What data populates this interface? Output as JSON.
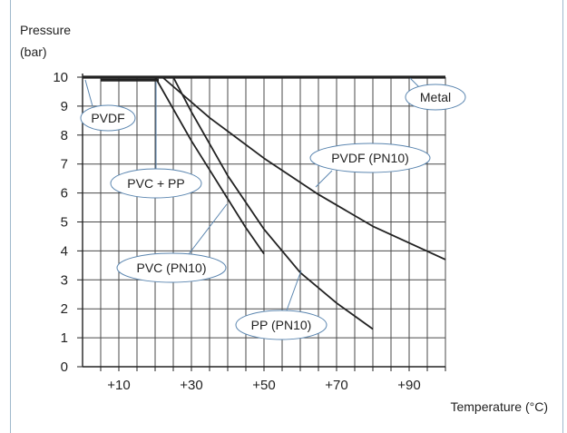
{
  "chart_data": {
    "type": "line",
    "ylabel_line1": "Pressure",
    "ylabel_line2": "(bar)",
    "xlabel": "Temperature (°C)",
    "xlim": [
      0,
      100
    ],
    "ylim": [
      0,
      10
    ],
    "x_ticks": [
      {
        "value": 10,
        "label": "+10"
      },
      {
        "value": 30,
        "label": "+30"
      },
      {
        "value": 50,
        "label": "+50"
      },
      {
        "value": 70,
        "label": "+70"
      },
      {
        "value": 90,
        "label": "+90"
      }
    ],
    "y_ticks": [
      {
        "value": 0,
        "label": "0"
      },
      {
        "value": 1,
        "label": "1"
      },
      {
        "value": 2,
        "label": "2"
      },
      {
        "value": 3,
        "label": "3"
      },
      {
        "value": 4,
        "label": "4"
      },
      {
        "value": 5,
        "label": "5"
      },
      {
        "value": 6,
        "label": "6"
      },
      {
        "value": 7,
        "label": "7"
      },
      {
        "value": 8,
        "label": "8"
      },
      {
        "value": 9,
        "label": "9"
      },
      {
        "value": 10,
        "label": "10"
      }
    ],
    "grid": true,
    "grid_step_x": 5,
    "series": [
      {
        "name": "Metal",
        "x": [
          0,
          100
        ],
        "y": [
          10,
          10
        ]
      },
      {
        "name": "PVDF",
        "x": [
          0,
          22
        ],
        "y": [
          10,
          10
        ]
      },
      {
        "name": "PVC + PP",
        "x": [
          5,
          21
        ],
        "y": [
          9.9,
          9.9
        ]
      },
      {
        "name": "PVDF (PN10)",
        "x": [
          22,
          35,
          50,
          65,
          80,
          100
        ],
        "y": [
          10,
          8.6,
          7.2,
          5.95,
          4.85,
          3.7
        ]
      },
      {
        "name": "PVC (PN10)",
        "x": [
          20,
          25,
          30,
          35,
          40,
          45,
          50
        ],
        "y": [
          10,
          8.9,
          7.8,
          6.8,
          5.8,
          4.8,
          3.9
        ]
      },
      {
        "name": "PP (PN10)",
        "x": [
          25,
          30,
          40,
          50,
          60,
          70,
          80
        ],
        "y": [
          10,
          8.8,
          6.6,
          4.75,
          3.25,
          2.2,
          1.3
        ]
      }
    ]
  },
  "colors": {
    "grid": "#4a4a4a",
    "axis": "#222222",
    "line": "#222222",
    "label_border": "#5b86b0",
    "frame_border": "#9fb8cc"
  }
}
